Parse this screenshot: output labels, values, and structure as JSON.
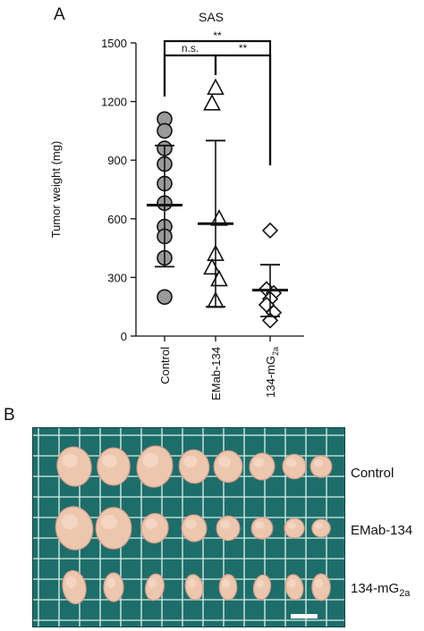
{
  "panels": [
    {
      "letter": "A"
    },
    {
      "letter": "B"
    }
  ],
  "chart_data": {
    "type": "scatter",
    "title": "SAS",
    "ylabel": "Tumor weight (mg)",
    "xlabel": "",
    "ylim": [
      0,
      1500
    ],
    "yticks": [
      "0",
      "300",
      "600",
      "900",
      "1200",
      "1500"
    ],
    "categories": [
      "Control",
      "EMab-134",
      "134-mG2a"
    ],
    "category_labels": [
      {
        "main": "Control",
        "sub": "",
        "tail": ""
      },
      {
        "main": "EMab-134",
        "sub": "",
        "tail": ""
      },
      {
        "main": "134-mG",
        "sub": "2a",
        "tail": ""
      }
    ],
    "series": [
      {
        "category": "Control",
        "marker": "circle",
        "fill": "#9a9a9a",
        "values": [
          1110,
          1050,
          960,
          880,
          780,
          680,
          560,
          510,
          400,
          200
        ],
        "mean": 670,
        "sd_upper": 975,
        "sd_lower": 355
      },
      {
        "category": "EMab-134",
        "marker": "triangle",
        "fill": "#ffffff",
        "values": [
          1270,
          1190,
          600,
          420,
          350,
          290,
          180
        ],
        "mean": 575,
        "sd_upper": 1000,
        "sd_lower": 150
      },
      {
        "category": "134-mG2a",
        "marker": "diamond",
        "fill": "#ffffff",
        "values": [
          540,
          240,
          220,
          190,
          160,
          120,
          80
        ],
        "mean": 235,
        "sd_upper": 365,
        "sd_lower": 100
      }
    ],
    "significance": [
      {
        "from": "Control",
        "to": "EMab-134",
        "label": "n.s."
      },
      {
        "from": "Control",
        "to": "134-mG2a",
        "label": "**"
      },
      {
        "from": "EMab-134",
        "to": "134-mG2a",
        "label": "**"
      }
    ],
    "grid": false
  },
  "photo": {
    "rows": [
      {
        "main": "Control",
        "sub": "",
        "sizes": [
          1.0,
          0.95,
          1.05,
          0.85,
          0.8,
          0.68,
          0.62,
          0.55,
          0.45
        ]
      },
      {
        "main": "EMab-134",
        "sub": "",
        "sizes": [
          1.1,
          1.05,
          0.75,
          0.68,
          0.62,
          0.55,
          0.5,
          0.45,
          0.4
        ]
      },
      {
        "main": "134-mG",
        "sub": "2a",
        "sizes": [
          0.62,
          0.5,
          0.45,
          0.42,
          0.42,
          0.4,
          0.42,
          0.45,
          0.3
        ]
      }
    ],
    "colors": {
      "green": "#1d6e6a",
      "grid": "#d6ece8",
      "tissue": "#ecc7ae",
      "tissue_dark": "#d99b8a"
    }
  }
}
